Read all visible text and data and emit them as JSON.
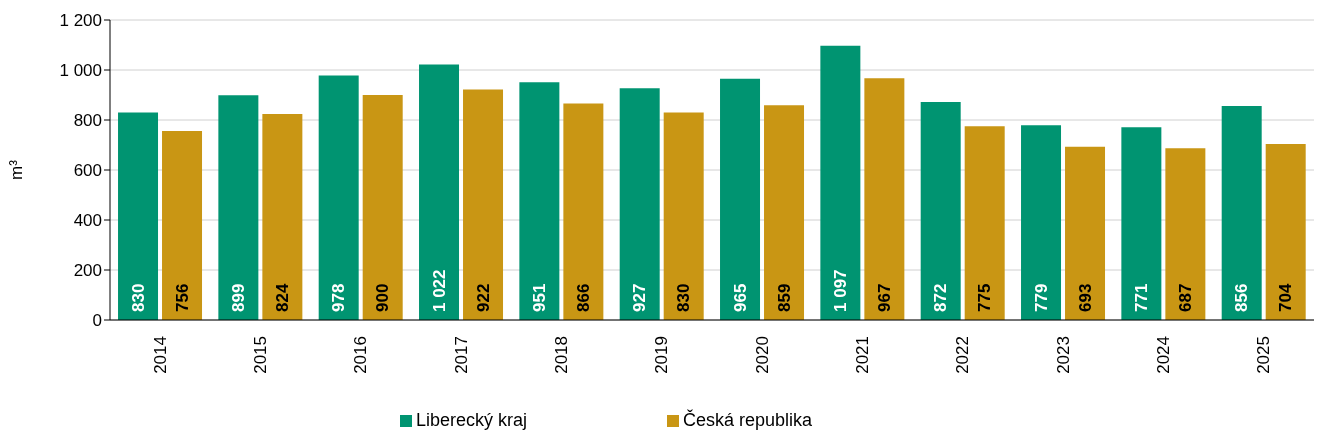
{
  "chart_data": {
    "type": "bar",
    "ylabel": "m³",
    "categories": [
      "2014",
      "2015",
      "2016",
      "2017",
      "2018",
      "2019",
      "2020",
      "2021",
      "2022",
      "2023",
      "2024",
      "2025"
    ],
    "series": [
      {
        "name": "Liberecký kraj",
        "color": "#009471",
        "values": [
          830,
          899,
          978,
          1022,
          951,
          927,
          965,
          1097,
          872,
          779,
          771,
          856
        ],
        "value_labels": [
          "830",
          "899",
          "978",
          "1 022",
          "951",
          "927",
          "965",
          "1 097",
          "872",
          "779",
          "771",
          "856"
        ]
      },
      {
        "name": "Česká republika",
        "color": "#c99614",
        "values": [
          756,
          824,
          900,
          922,
          866,
          830,
          859,
          967,
          775,
          693,
          687,
          704
        ],
        "value_labels": [
          "756",
          "824",
          "900",
          "922",
          "866",
          "830",
          "859",
          "967",
          "775",
          "693",
          "687",
          "704"
        ]
      }
    ],
    "ylim": [
      0,
      1200
    ],
    "yticks": [
      0,
      200,
      400,
      600,
      800,
      {
        "value": 1000,
        "label": "1 000"
      },
      {
        "value": 1200,
        "label": "1 200"
      }
    ],
    "grid": "y",
    "legend": "bottom"
  }
}
